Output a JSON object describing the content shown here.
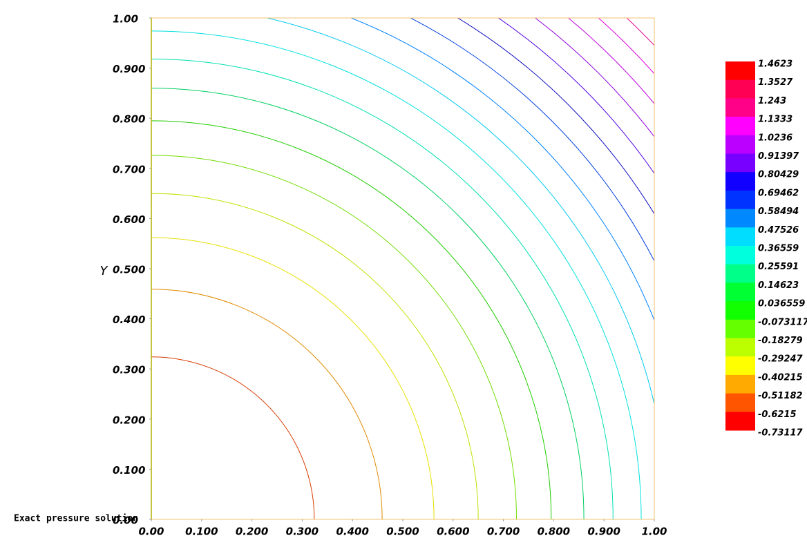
{
  "chart_data": {
    "type": "contour",
    "title": "Exact pressure solution",
    "ylabel": "Y",
    "xlim": [
      0,
      1
    ],
    "ylim": [
      0,
      1
    ],
    "xticks": [
      {
        "value": 0,
        "label": "0.00"
      },
      {
        "value": 0.1,
        "label": "0.100"
      },
      {
        "value": 0.2,
        "label": "0.200"
      },
      {
        "value": 0.3,
        "label": "0.300"
      },
      {
        "value": 0.4,
        "label": "0.400"
      },
      {
        "value": 0.5,
        "label": "0.500"
      },
      {
        "value": 0.6,
        "label": "0.600"
      },
      {
        "value": 0.7,
        "label": "0.700"
      },
      {
        "value": 0.8,
        "label": "0.800"
      },
      {
        "value": 0.9,
        "label": "0.900"
      },
      {
        "value": 1,
        "label": "1.00"
      }
    ],
    "yticks": [
      {
        "value": 0,
        "label": "0.00"
      },
      {
        "value": 0.1,
        "label": "0.100"
      },
      {
        "value": 0.2,
        "label": "0.200"
      },
      {
        "value": 0.3,
        "label": "0.300"
      },
      {
        "value": 0.4,
        "label": "0.400"
      },
      {
        "value": 0.5,
        "label": "0.500"
      },
      {
        "value": 0.6,
        "label": "0.600"
      },
      {
        "value": 0.7,
        "label": "0.700"
      },
      {
        "value": 0.8,
        "label": "0.800"
      },
      {
        "value": 0.9,
        "label": "0.900"
      },
      {
        "value": 1,
        "label": "1.00"
      }
    ],
    "contours": [
      {
        "radius": 0.324,
        "color": "#d83a00"
      },
      {
        "radius": 0.459,
        "color": "#e08a00"
      },
      {
        "radius": 0.562,
        "color": "#e6e000"
      },
      {
        "radius": 0.65,
        "color": "#c0e000"
      },
      {
        "radius": 0.726,
        "color": "#70dd00"
      },
      {
        "radius": 0.795,
        "color": "#20cc00"
      },
      {
        "radius": 0.86,
        "color": "#00d060"
      },
      {
        "radius": 0.918,
        "color": "#00e0b0"
      },
      {
        "radius": 0.974,
        "color": "#00e0e0"
      },
      {
        "radius": 1.026,
        "color": "#00c8f0"
      },
      {
        "radius": 1.076,
        "color": "#0080ff"
      },
      {
        "radius": 1.125,
        "color": "#0040e0"
      },
      {
        "radius": 1.171,
        "color": "#1010c0"
      },
      {
        "radius": 1.215,
        "color": "#5000e0"
      },
      {
        "radius": 1.258,
        "color": "#9000e0"
      },
      {
        "radius": 1.299,
        "color": "#c000e0"
      },
      {
        "radius": 1.338,
        "color": "#e000e0"
      },
      {
        "radius": 1.376,
        "color": "#e00090"
      }
    ],
    "colorbar": {
      "levels": [
        1.4623,
        1.3527,
        1.243,
        1.1333,
        1.0236,
        0.91397,
        0.80429,
        0.69462,
        0.58494,
        0.47526,
        0.36559,
        0.25591,
        0.14623,
        0.036559,
        -0.073117,
        -0.18279,
        -0.29247,
        -0.40215,
        -0.51182,
        -0.6215,
        -0.73117
      ],
      "colors": [
        "#ff0000",
        "#ff0055",
        "#ff0088",
        "#ff00ff",
        "#bb00ff",
        "#7700ff",
        "#1100ff",
        "#0033ff",
        "#0088ff",
        "#00ddff",
        "#00ffdd",
        "#00ff88",
        "#00ff33",
        "#11ff00",
        "#66ff00",
        "#bbff00",
        "#ffff00",
        "#ffaa00",
        "#ff5500",
        "#ff0000"
      ]
    }
  }
}
